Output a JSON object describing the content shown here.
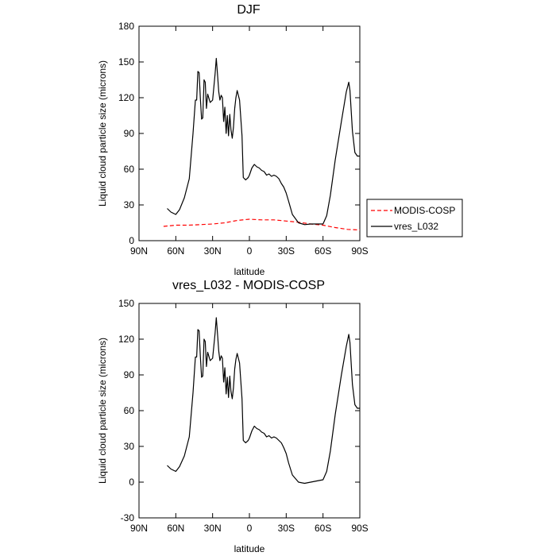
{
  "chart_data": [
    {
      "type": "line",
      "title": "DJF",
      "xlabel": "latitude",
      "ylabel": "Liquid cloud particle size (microns)",
      "x_ticks": [
        "90N",
        "60N",
        "30N",
        "0",
        "30S",
        "60S",
        "90S"
      ],
      "x_tick_values": [
        90,
        60,
        30,
        0,
        -30,
        -60,
        -90
      ],
      "xlim": [
        90,
        -90
      ],
      "ylim": [
        0,
        180
      ],
      "y_ticks": [
        0,
        30,
        60,
        90,
        120,
        150,
        180
      ],
      "legend": {
        "placement": "right",
        "entries": [
          "MODIS-COSP",
          "vres_L032"
        ]
      },
      "series": [
        {
          "name": "MODIS-COSP",
          "color": "#ff0000",
          "style": "dashed",
          "x": [
            70,
            60,
            50,
            40,
            30,
            20,
            10,
            0,
            -10,
            -20,
            -30,
            -40,
            -50,
            -60,
            -70,
            -80,
            -90
          ],
          "y": [
            12,
            13,
            13,
            13.5,
            14,
            15,
            17,
            18,
            17.5,
            17.5,
            16.5,
            15.5,
            14,
            13,
            11,
            9.5,
            9
          ]
        },
        {
          "name": "vres_L032",
          "color": "#000000",
          "style": "solid",
          "x": [
            67,
            64,
            60,
            57,
            53,
            49,
            46,
            44,
            43,
            42,
            41,
            40,
            39,
            38,
            37,
            36,
            35,
            34,
            32,
            30,
            28,
            27,
            26,
            25,
            24,
            23,
            22,
            21,
            20,
            19,
            18,
            17,
            16,
            15,
            14,
            13,
            12,
            11,
            10,
            8,
            6,
            5,
            4,
            3,
            2,
            1,
            0,
            -2,
            -4,
            -6,
            -8,
            -10,
            -12,
            -14,
            -16,
            -18,
            -20,
            -22,
            -24,
            -26,
            -28,
            -30,
            -32,
            -35,
            -40,
            -45,
            -50,
            -55,
            -60,
            -63,
            -66,
            -70,
            -75,
            -79,
            -81,
            -82,
            -84,
            -86,
            -88,
            -90
          ],
          "y": [
            27,
            24,
            22,
            26,
            36,
            52,
            90,
            118,
            118,
            142,
            141,
            120,
            102,
            103,
            135,
            133,
            111,
            123,
            116,
            118,
            140,
            153,
            140,
            125,
            118,
            122,
            120,
            100,
            112,
            90,
            105,
            88,
            106,
            93,
            86,
            95,
            111,
            120,
            126,
            118,
            88,
            53,
            52,
            51,
            52,
            53,
            55,
            61,
            64,
            62,
            61,
            59,
            58,
            55,
            56,
            54,
            55,
            54,
            52,
            48,
            45,
            40,
            33,
            22,
            15,
            13.5,
            14,
            14,
            14,
            21,
            38,
            68,
            100,
            125,
            133,
            126,
            92,
            74,
            71,
            71
          ]
        }
      ]
    },
    {
      "type": "line",
      "title": "vres_L032 - MODIS-COSP",
      "xlabel": "latitude",
      "ylabel": "Liquid cloud particle size (microns)",
      "x_ticks": [
        "90N",
        "60N",
        "30N",
        "0",
        "30S",
        "60S",
        "90S"
      ],
      "x_tick_values": [
        90,
        60,
        30,
        0,
        -30,
        -60,
        -90
      ],
      "xlim": [
        90,
        -90
      ],
      "ylim": [
        -30,
        150
      ],
      "y_ticks": [
        -30,
        0,
        30,
        60,
        90,
        120,
        150
      ],
      "series": [
        {
          "name": "vres_L032 - MODIS-COSP",
          "color": "#000000",
          "style": "solid",
          "x": [
            67,
            64,
            60,
            57,
            53,
            49,
            46,
            44,
            43,
            42,
            41,
            40,
            39,
            38,
            37,
            36,
            35,
            34,
            32,
            30,
            28,
            27,
            26,
            25,
            24,
            23,
            22,
            21,
            20,
            19,
            18,
            17,
            16,
            15,
            14,
            13,
            12,
            11,
            10,
            8,
            6,
            5,
            4,
            3,
            2,
            1,
            0,
            -2,
            -4,
            -6,
            -8,
            -10,
            -12,
            -14,
            -16,
            -18,
            -20,
            -22,
            -24,
            -26,
            -28,
            -30,
            -32,
            -35,
            -40,
            -45,
            -50,
            -55,
            -60,
            -63,
            -66,
            -70,
            -75,
            -79,
            -81,
            -82,
            -84,
            -86,
            -88,
            -90
          ],
          "y": [
            14,
            11,
            9,
            13,
            22,
            38,
            75,
            105,
            105,
            128,
            127,
            106,
            88,
            89,
            120,
            118,
            97,
            109,
            102,
            104,
            125,
            138,
            125,
            110,
            102,
            106,
            104,
            84,
            96,
            74,
            88,
            71,
            89,
            76,
            70,
            79,
            95,
            103,
            108,
            100,
            70,
            35,
            34,
            33,
            34,
            35,
            37,
            43,
            47,
            45,
            44,
            42,
            41,
            38,
            39,
            37,
            38,
            37,
            35,
            33,
            29,
            24,
            16,
            6,
            0,
            -1,
            0,
            1,
            2,
            9,
            26,
            57,
            90,
            114,
            124,
            117,
            82,
            65,
            62,
            62
          ]
        }
      ]
    }
  ]
}
